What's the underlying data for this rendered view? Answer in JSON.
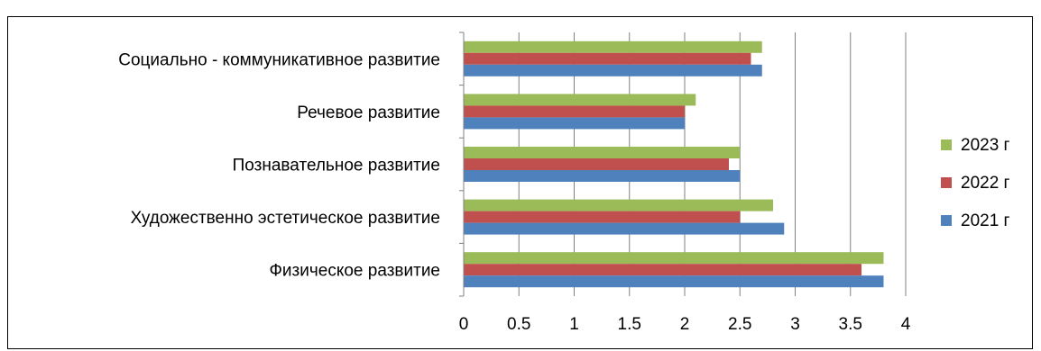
{
  "chart_data": {
    "type": "bar",
    "orientation": "horizontal",
    "title": "",
    "xlabel": "",
    "ylabel": "",
    "xlim": [
      0,
      4
    ],
    "categories": [
      "Социально - коммуникативное развитие",
      "Речевое развитие",
      "Познавательное развитие",
      "Художественно эстетическое развитие",
      "Физическое развитие"
    ],
    "series": [
      {
        "name": "2023 г",
        "color": "#9bbb59",
        "values": [
          2.7,
          2.1,
          2.5,
          2.8,
          3.8
        ]
      },
      {
        "name": "2022 г",
        "color": "#c0504d",
        "values": [
          2.6,
          2.0,
          2.4,
          2.5,
          3.6
        ]
      },
      {
        "name": "2021 г",
        "color": "#4f81bd",
        "values": [
          2.7,
          2.0,
          2.5,
          2.9,
          3.8
        ]
      }
    ],
    "x_ticks": [
      "0",
      "0.5",
      "1",
      "1.5",
      "2",
      "2.5",
      "3",
      "3.5",
      "4"
    ],
    "grid": "vertical major gridlines",
    "legend_position": "right"
  }
}
